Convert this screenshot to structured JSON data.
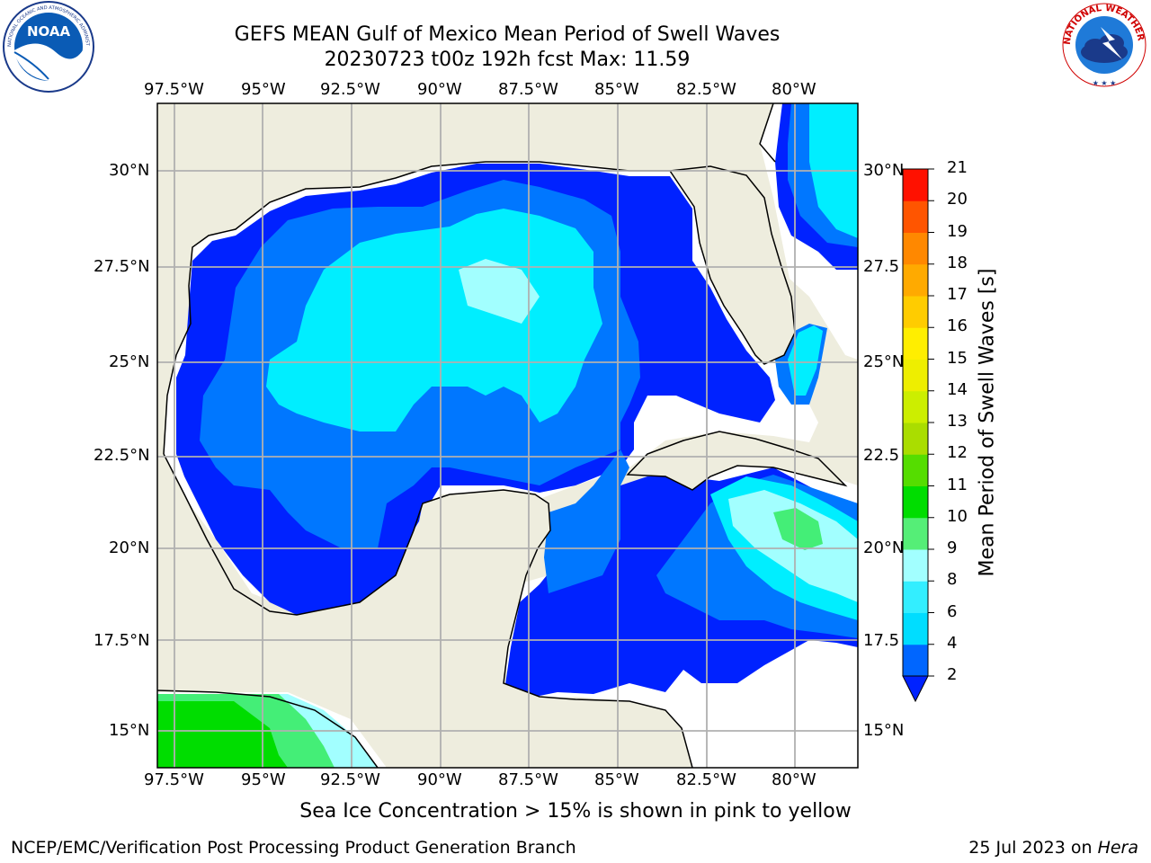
{
  "header": {
    "title": "GEFS MEAN Gulf of Mexico Mean Period of Swell Waves",
    "subtitle": "20230723 t00z 192h fcst   Max: 11.59"
  },
  "logos": {
    "left": {
      "name": "noaa-logo",
      "text": "NOAA",
      "ring_text": "NATIONAL OCEANIC AND ATMOSPHERIC ADMINISTRATION · U.S. DEPARTMENT OF COMMERCE"
    },
    "right": {
      "name": "nws-logo",
      "ring_text": "NATIONAL WEATHER SERVICE"
    }
  },
  "map": {
    "lon_labels": [
      "97.5°W",
      "95°W",
      "92.5°W",
      "90°W",
      "87.5°W",
      "85°W",
      "82.5°W",
      "80°W"
    ],
    "lat_labels_left": [
      "30°N",
      "27.5°N",
      "25°N",
      "22.5°N",
      "20°N",
      "17.5°N",
      "15°N"
    ],
    "lat_labels_right": [
      "30°N",
      "27.5",
      "25°N",
      "22.5",
      "20°N",
      "17.5",
      "15°N"
    ],
    "colors": {
      "land": "#eeedde",
      "ocean_blank": "#ffffff",
      "gridline": "#b0b0b0"
    }
  },
  "colorbar": {
    "label": "Mean Period of Swell Waves [s]",
    "ticks": [
      "2",
      "4",
      "6",
      "8",
      "9",
      "10",
      "11",
      "12",
      "13",
      "14",
      "15",
      "16",
      "17",
      "18",
      "19",
      "20",
      "21"
    ],
    "colors": [
      "#0066ff",
      "#00ddff",
      "#33eeff",
      "#a2ffff",
      "#55ee77",
      "#00dd00",
      "#55dd00",
      "#aadd00",
      "#ccee00",
      "#eeee00",
      "#ffee00",
      "#ffcc00",
      "#ffaa00",
      "#ff8800",
      "#ff5500",
      "#ff1100"
    ],
    "under_color": "#0022ff"
  },
  "legend_colors": {
    "level_2_4": "#0022ff",
    "level_4_6": "#0077ff",
    "level_6_8": "#00eeff",
    "level_8_9": "#a2ffff",
    "level_9_10": "#44ee77",
    "level_10_11": "#00dd00"
  },
  "notes": {
    "sea_ice": "Sea Ice Concentration > 15% is shown in pink to yellow"
  },
  "footer": {
    "left": "NCEP/EMC/Verification Post Processing Product Generation Branch",
    "date": "25 Jul 2023 on ",
    "host": "Hera"
  }
}
